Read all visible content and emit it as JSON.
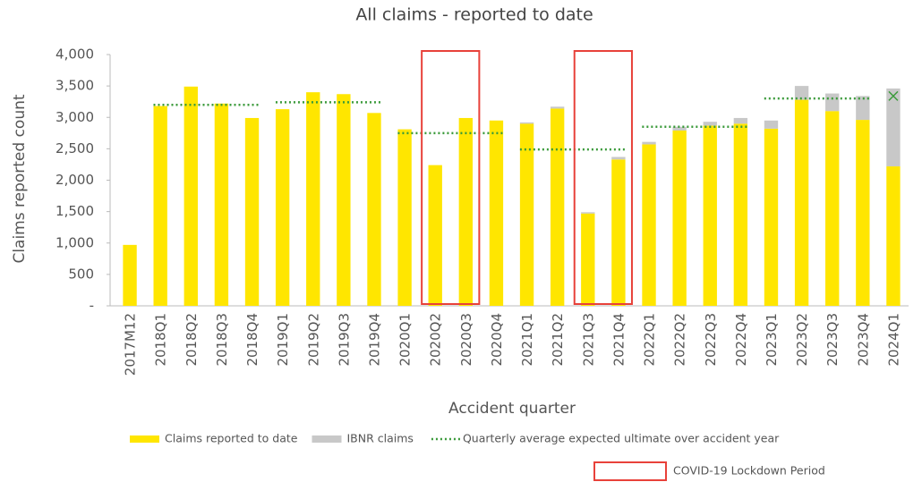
{
  "chart_data": {
    "type": "bar",
    "title": "All claims - reported to date",
    "x_label": "Accident quarter",
    "y_label": "Claims reported count",
    "categories": [
      "2017M12",
      "2018Q1",
      "2018Q2",
      "2018Q3",
      "2018Q4",
      "2019Q1",
      "2019Q2",
      "2019Q3",
      "2019Q4",
      "2020Q1",
      "2020Q2",
      "2020Q3",
      "2020Q4",
      "2021Q1",
      "2021Q2",
      "2021Q3",
      "2021Q4",
      "2022Q1",
      "2022Q2",
      "2022Q3",
      "2022Q4",
      "2023Q1",
      "2023Q2",
      "2023Q3",
      "2023Q4",
      "2024Q1"
    ],
    "series": [
      {
        "name": "Claims reported to date",
        "color": "#ffe600",
        "kind": "bar",
        "values": [
          970,
          3180,
          3490,
          3220,
          2990,
          3130,
          3400,
          3370,
          3070,
          2810,
          2240,
          2990,
          2950,
          2900,
          3140,
          1470,
          2330,
          2570,
          2790,
          2870,
          2900,
          2820,
          3280,
          3100,
          2960,
          2220
        ]
      },
      {
        "name": "IBNR claims",
        "color": "#c8c8c8",
        "kind": "bar",
        "values": [
          0,
          0,
          0,
          0,
          0,
          0,
          0,
          0,
          0,
          0,
          0,
          0,
          0,
          20,
          30,
          20,
          40,
          40,
          60,
          60,
          90,
          130,
          220,
          280,
          380,
          1240
        ]
      },
      {
        "name": "Quarterly average expected ultimate over accident year",
        "color": "#3a9a3a",
        "kind": "dotted",
        "values": [
          null,
          3200,
          3200,
          3200,
          3200,
          3240,
          3240,
          3240,
          3240,
          2750,
          2750,
          2750,
          2750,
          2490,
          2490,
          2490,
          2490,
          2850,
          2850,
          2850,
          2850,
          3300,
          3300,
          3300,
          3300,
          3340
        ]
      }
    ],
    "stacked": true,
    "ylim": [
      0,
      4000
    ],
    "yticks": [
      {
        "value": 0,
        "label": "-"
      },
      500,
      {
        "value": 1000,
        "label": "1,000"
      },
      {
        "value": 1500,
        "label": "1,500"
      },
      {
        "value": 2000,
        "label": "2,000"
      },
      {
        "value": 2500,
        "label": "2,500"
      },
      {
        "value": 3000,
        "label": "3,000"
      },
      {
        "value": 3500,
        "label": "3,500"
      },
      {
        "value": 4000,
        "label": "4,000"
      }
    ],
    "grid": false,
    "highlight": {
      "label": "COVID-19 Lockdown Period",
      "color": "#e8413a",
      "ranges": [
        [
          "2020Q2",
          "2020Q3"
        ],
        [
          "2021Q3",
          "2021Q4"
        ]
      ]
    }
  }
}
